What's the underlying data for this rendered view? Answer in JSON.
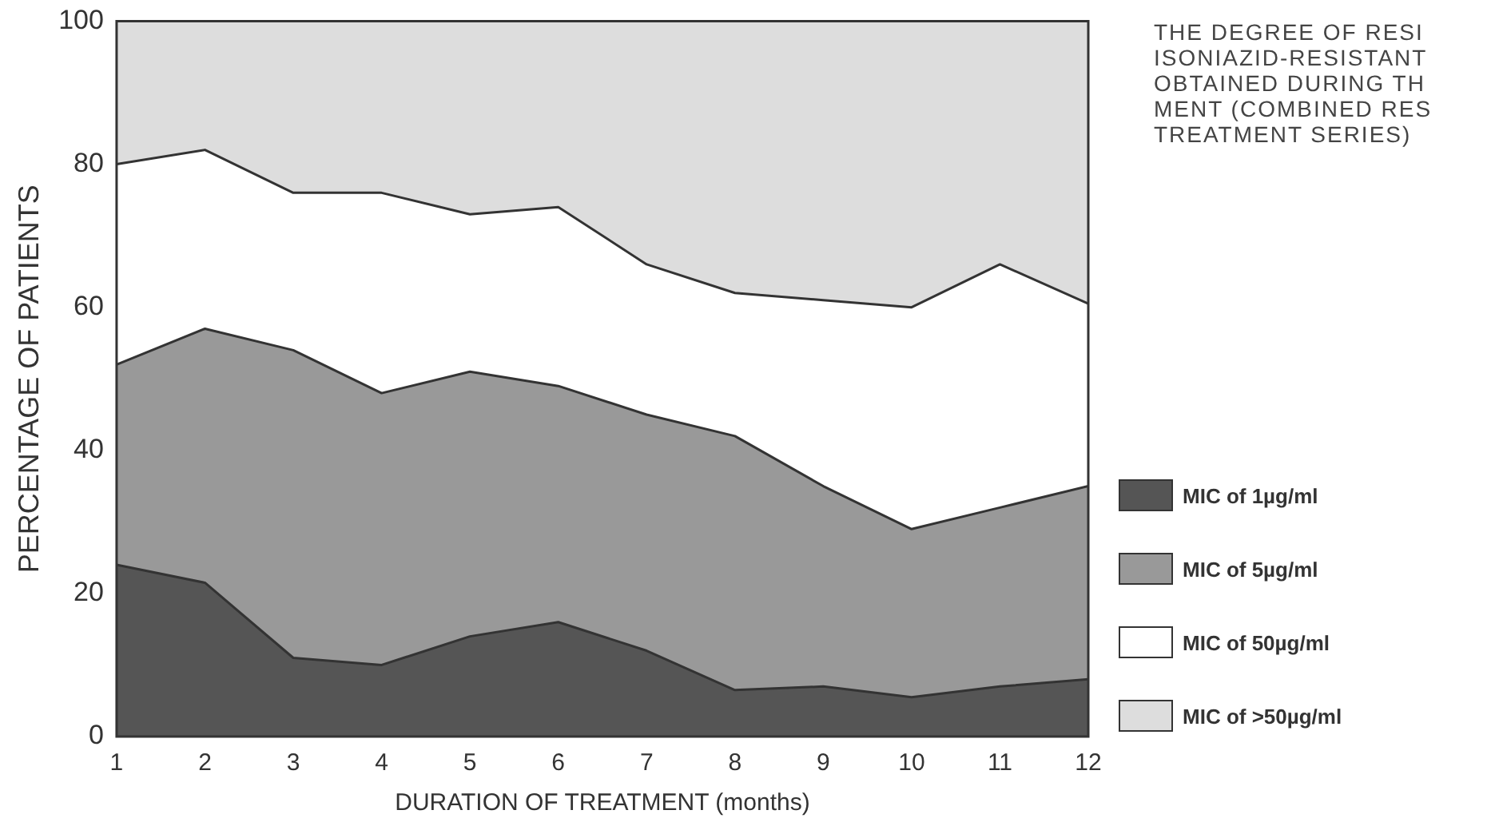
{
  "chart_data": {
    "type": "area",
    "stacked": true,
    "title": "THE DEGREE OF RESI\nISONIAZID-RESISTANT\nOBTAINED DURING TH\nMENT (COMBINED RES\nTREATMENT SERIES)",
    "xlabel": "DURATION OF TREATMENT (months)",
    "ylabel": "PERCENTAGE OF PATIENTS",
    "x": [
      1,
      2,
      3,
      4,
      5,
      6,
      7,
      8,
      9,
      10,
      11,
      12
    ],
    "xlim": [
      1,
      12
    ],
    "xticks": [
      1,
      2,
      3,
      4,
      5,
      6,
      7,
      8,
      9,
      10,
      11,
      12
    ],
    "series": [
      {
        "name": "MIC of 1µg/ml",
        "color": "#555555",
        "values": [
          24,
          21.5,
          11,
          10,
          14,
          16,
          12,
          6.5,
          7,
          5.5,
          7,
          8
        ]
      },
      {
        "name": "MIC of 5µg/ml",
        "color": "#999999",
        "values": [
          28,
          35.5,
          43,
          38,
          37,
          33,
          33,
          35.5,
          28,
          23.5,
          25,
          27
        ]
      },
      {
        "name": "MIC of 50µg/ml",
        "color": "#ffffff",
        "values": [
          28,
          25,
          22,
          28,
          22,
          25,
          21,
          20,
          26,
          31,
          34,
          25.5
        ]
      },
      {
        "name": "MIC of >50µg/ml",
        "color": "#dddddd",
        "values": [
          20,
          18,
          24,
          24,
          27,
          26,
          34,
          38,
          39,
          40,
          34,
          39.5
        ]
      }
    ],
    "ylim": [
      0,
      100
    ],
    "yticks": [
      0,
      20,
      40,
      60,
      80,
      100
    ],
    "grid": false,
    "legend": "right"
  }
}
